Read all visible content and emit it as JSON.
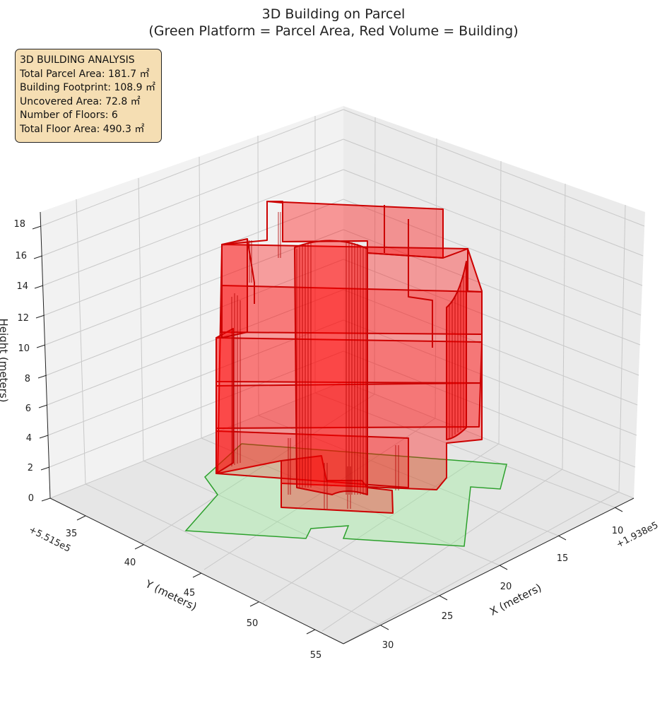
{
  "chart_data": {
    "type": "3d-polygons",
    "title_line1": "3D Building on Parcel",
    "title_line2": "(Green Platform = Parcel Area, Red Volume = Building)",
    "xlabel": "X (meters)",
    "ylabel": "Y (meters)",
    "zlabel": "Height (meters)",
    "x_offset": "+1.938e5",
    "y_offset": "+5.515e5",
    "x_ticks": [
      "10",
      "15",
      "20",
      "25",
      "30"
    ],
    "y_ticks": [
      "35",
      "40",
      "45",
      "50",
      "55"
    ],
    "z_ticks": [
      "0",
      "2",
      "4",
      "6",
      "8",
      "10",
      "12",
      "14",
      "16",
      "18"
    ],
    "series": [
      {
        "role": "parcel",
        "color": "#90ee90",
        "edge": "#2ca02c"
      },
      {
        "role": "building",
        "color": "#ff0000",
        "edge": "#cc0000"
      }
    ],
    "grid": true
  },
  "info_box": {
    "heading": "3D BUILDING ANALYSIS",
    "line1": "Total Parcel Area: 181.7 ㎡",
    "line2": "Building Footprint: 108.9 ㎡",
    "line3": "Uncovered Area: 72.8 ㎡",
    "line4": "Number of Floors: 6",
    "line5": "Total Floor Area: 490.3 ㎡"
  }
}
